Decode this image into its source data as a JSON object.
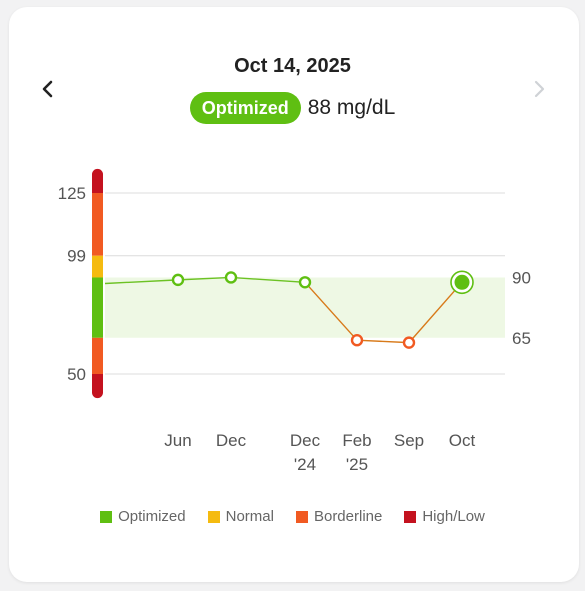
{
  "header": {
    "date": "Oct 14, 2025",
    "status_label": "Optimized",
    "reading": "88 mg/dL",
    "prev_icon": "chevron-left-icon",
    "next_icon": "chevron-right-icon"
  },
  "colors": {
    "optimized": "#5fbf12",
    "normal": "#f5bb10",
    "borderline": "#f15a22",
    "high_low": "#c4121f",
    "band": "#eef8e4",
    "line_green": "#6cc224",
    "line_orange": "#d87a1a"
  },
  "chart_data": {
    "type": "line",
    "x": [
      "Jun",
      "Dec",
      "Dec\n'24",
      "Feb\n'25",
      "Sep",
      "Oct"
    ],
    "values": [
      89,
      90,
      88,
      64,
      63,
      88
    ],
    "point_status": [
      "optimized",
      "optimized",
      "optimized",
      "borderline",
      "borderline",
      "optimized"
    ],
    "selected_index": 5,
    "left_ticks": [
      125,
      99,
      50
    ],
    "right_ticks": [
      90,
      65
    ],
    "optimal_range": [
      65,
      90
    ],
    "ylim": [
      40,
      135
    ],
    "range_bar": [
      {
        "status": "high_low",
        "from": 125,
        "to": 135
      },
      {
        "status": "borderline",
        "from": 99,
        "to": 125
      },
      {
        "status": "normal",
        "from": 90,
        "to": 99
      },
      {
        "status": "optimized",
        "from": 65,
        "to": 90
      },
      {
        "status": "borderline",
        "from": 50,
        "to": 65
      },
      {
        "status": "high_low",
        "from": 40,
        "to": 50
      }
    ],
    "grid": true
  },
  "legend": [
    {
      "label": "Optimized",
      "color": "#5fbf12"
    },
    {
      "label": "Normal",
      "color": "#f5bb10"
    },
    {
      "label": "Borderline",
      "color": "#f15a22"
    },
    {
      "label": "High/Low",
      "color": "#c4121f"
    }
  ]
}
